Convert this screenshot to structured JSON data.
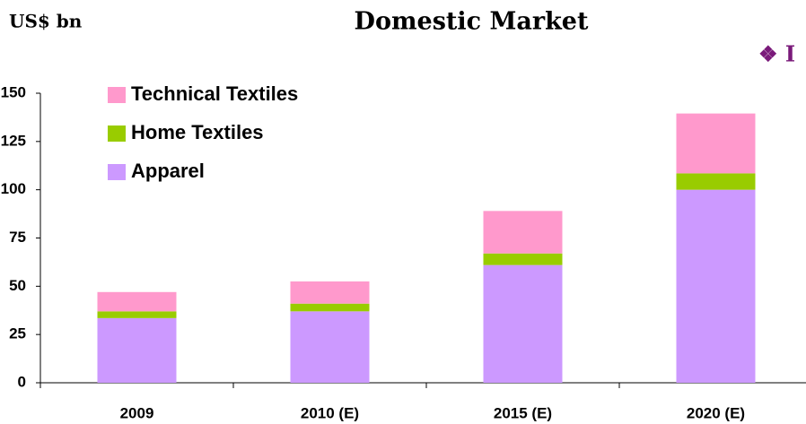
{
  "chart_data": {
    "type": "bar",
    "stacked": true,
    "title": "Domestic Market",
    "y_axis_label": "US$ bn",
    "annotation": "❖ I",
    "categories": [
      "2009",
      "2010 (E)",
      "2015 (E)",
      "2020 (E)"
    ],
    "series": [
      {
        "name": "Apparel",
        "color": "#cc99ff",
        "values": [
          33.5,
          37,
          61,
          100
        ]
      },
      {
        "name": "Home Textiles",
        "color": "#99cc00",
        "values": [
          3.5,
          4,
          6,
          8.5
        ]
      },
      {
        "name": "Technical Textiles",
        "color": "#ff99cc",
        "values": [
          10,
          11.5,
          22,
          31
        ]
      }
    ],
    "ylim": [
      0,
      150
    ],
    "yticks": [
      0,
      25,
      50,
      75,
      100,
      125,
      150
    ],
    "grid": false,
    "legend": "top-left"
  }
}
